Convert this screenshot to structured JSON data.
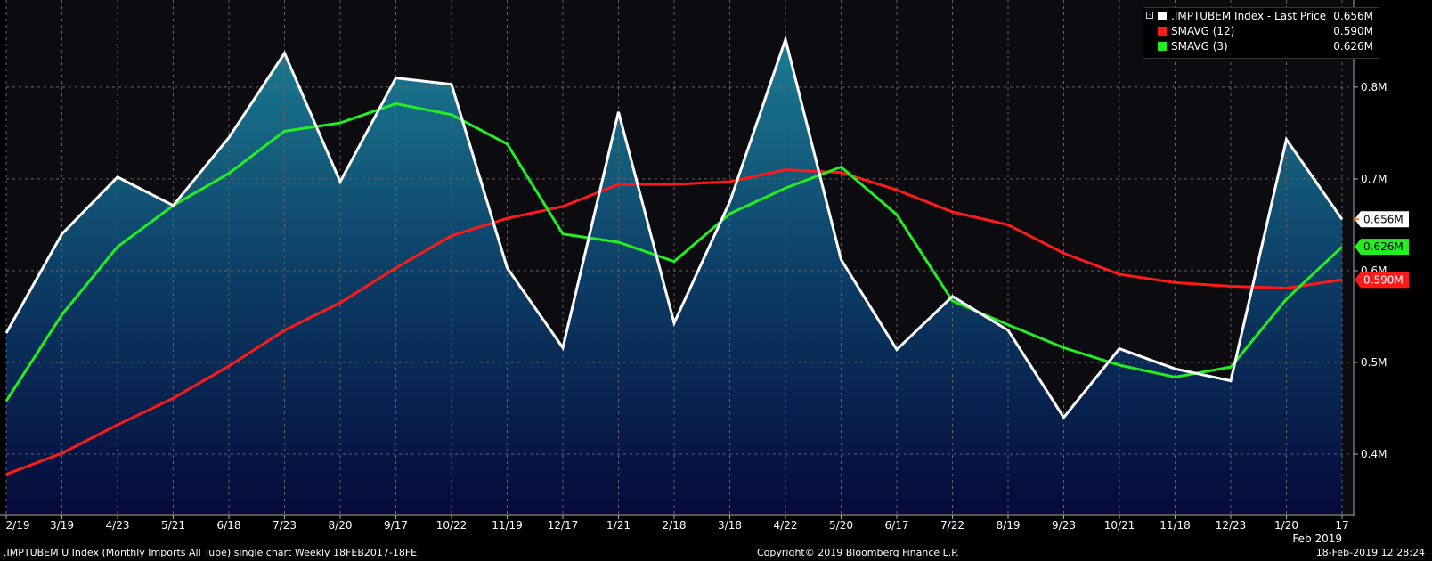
{
  "chart_data": {
    "type": "area",
    "x": [
      "2/19",
      "3/19",
      "4/23",
      "5/21",
      "6/18",
      "7/23",
      "8/20",
      "9/17",
      "10/22",
      "11/19",
      "12/17",
      "1/21",
      "2/18",
      "3/18",
      "4/22",
      "5/20",
      "6/17",
      "7/22",
      "8/19",
      "9/23",
      "10/21",
      "11/18",
      "12/23",
      "1/20",
      "17"
    ],
    "series": [
      {
        "name": ".IMPTUBEM Index - Last Price",
        "color": "#ffffff",
        "values": [
          0.532,
          0.64,
          0.702,
          0.671,
          0.745,
          0.837,
          0.697,
          0.81,
          0.803,
          0.603,
          0.516,
          0.773,
          0.543,
          0.675,
          0.852,
          0.612,
          0.514,
          0.572,
          0.535,
          0.44,
          0.515,
          0.493,
          0.48,
          0.743,
          0.656
        ]
      },
      {
        "name": "SMAVG (12)",
        "color": "#ff1a1a",
        "values": [
          0.378,
          0.401,
          0.432,
          0.461,
          0.496,
          0.535,
          0.565,
          0.603,
          0.638,
          0.657,
          0.67,
          0.694,
          0.694,
          0.697,
          0.71,
          0.707,
          0.688,
          0.664,
          0.65,
          0.619,
          0.596,
          0.587,
          0.583,
          0.581,
          0.59
        ]
      },
      {
        "name": "SMAVG (3)",
        "color": "#22ee22",
        "values": [
          0.458,
          0.552,
          0.626,
          0.671,
          0.706,
          0.752,
          0.761,
          0.782,
          0.77,
          0.738,
          0.64,
          0.631,
          0.61,
          0.662,
          0.69,
          0.713,
          0.661,
          0.567,
          0.541,
          0.516,
          0.497,
          0.484,
          0.495,
          0.569,
          0.626
        ]
      }
    ],
    "yticks": [
      "0.4M",
      "0.5M",
      "0.6M",
      "0.7M",
      "0.8M"
    ],
    "ytick_values": [
      0.4,
      0.5,
      0.6,
      0.7,
      0.8
    ],
    "ylim": [
      0.335,
      0.895
    ],
    "xlabel_extra": "Feb 2019",
    "last_value_tags": [
      {
        "text": "0.656M",
        "value": 0.656,
        "bg": "#ffffff",
        "fg": "#000000"
      },
      {
        "text": "0.626M",
        "value": 0.626,
        "bg": "#22ee22",
        "fg": "#000000"
      },
      {
        "text": "0.590M",
        "value": 0.59,
        "bg": "#ff1a1a",
        "fg": "#ffffff"
      }
    ],
    "grid": true,
    "legend_position": "top-right"
  },
  "legend": {
    "items": [
      {
        "label": ".IMPTUBEM Index - Last Price",
        "value": "0.656M",
        "color": "#ffffff"
      },
      {
        "label": "SMAVG (12)",
        "value": "0.590M",
        "color": "#ff1a1a"
      },
      {
        "label": "SMAVG (3)",
        "value": "0.626M",
        "color": "#22ee22"
      }
    ]
  },
  "footer": {
    "left": ".IMPTUBEM U Index (Monthly Imports All Tube) single chart  Weekly 18FEB2017-18FE",
    "center": "Copyright© 2019 Bloomberg Finance L.P.",
    "right": "18-Feb-2019 12:28:24"
  }
}
